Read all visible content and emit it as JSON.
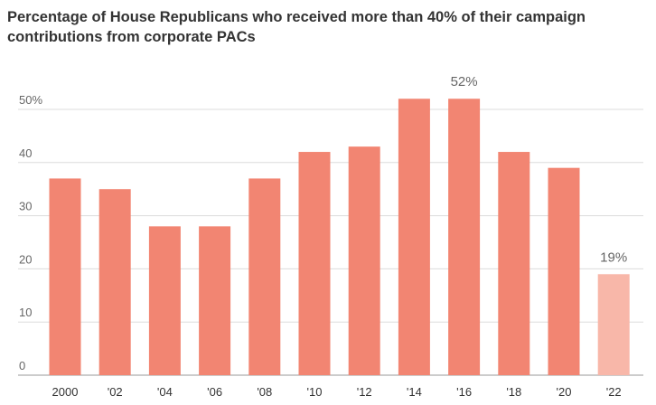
{
  "chart_data": {
    "type": "bar",
    "title": "Percentage of House Republicans who received more than 40% of their campaign contributions from corporate PACs",
    "categories": [
      "2000",
      "'02",
      "'04",
      "'06",
      "'08",
      "'10",
      "'12",
      "'14",
      "'16",
      "'18",
      "'20",
      "'22"
    ],
    "values": [
      37,
      35,
      28,
      28,
      37,
      42,
      43,
      52,
      52,
      42,
      39,
      19
    ],
    "data_labels": {
      "8": "52%",
      "11": "19%"
    },
    "y_tick_labels": [
      "0",
      "10",
      "20",
      "30",
      "40",
      "50%"
    ],
    "y_ticks": [
      0,
      10,
      20,
      30,
      40,
      50
    ],
    "ylim": [
      0,
      52
    ],
    "xlabel": "",
    "ylabel": "",
    "grid": true,
    "colors": {
      "bar": "#f28572",
      "highlight_bar": "#f8b7a9"
    },
    "highlight_index": 11
  }
}
